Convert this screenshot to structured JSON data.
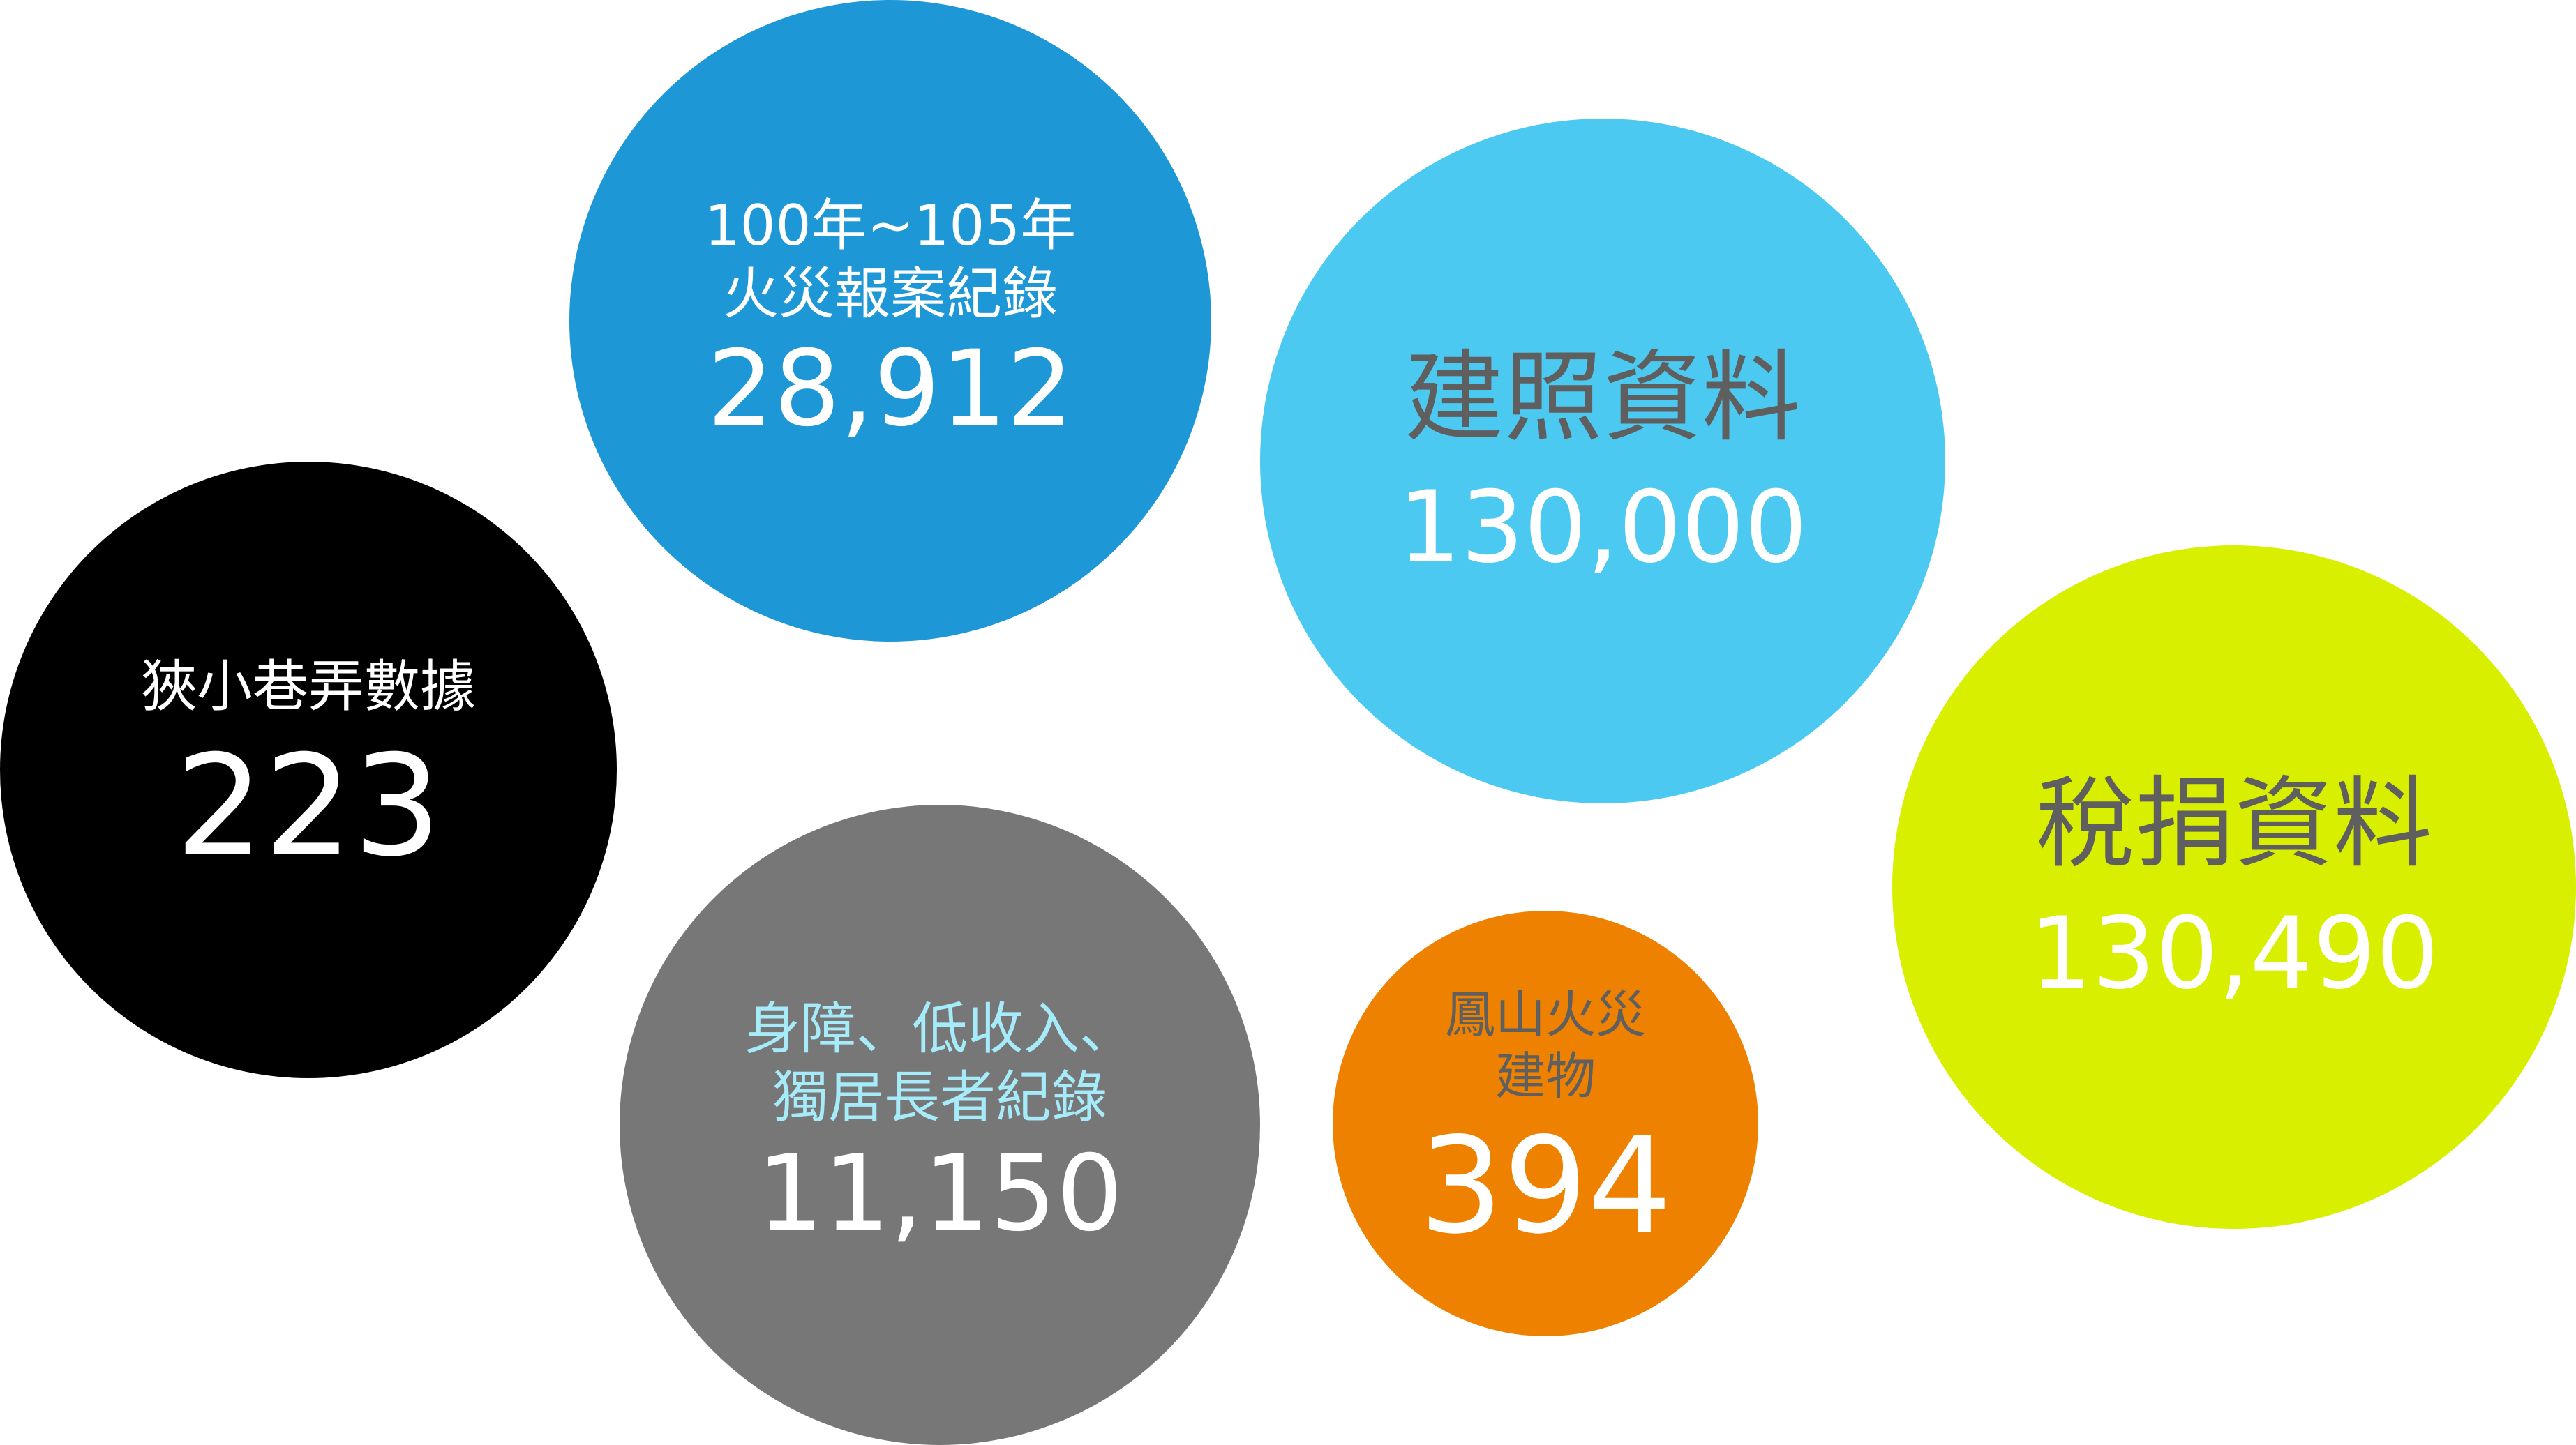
{
  "bubbles": [
    {
      "id": "fire-reports",
      "label_lines": [
        "100年~105年",
        "火災報案紀錄"
      ],
      "value": "28,912",
      "fill_color": "#1e97d6",
      "label_color": "#ffffff",
      "value_color": "#ffffff"
    },
    {
      "id": "building-permits",
      "label_lines": [
        "建照資料"
      ],
      "value": "130,000",
      "fill_color": "#4cc9f1",
      "label_color": "#5f5f5f",
      "value_color": "#ffffff"
    },
    {
      "id": "narrow-alleys",
      "label_lines": [
        "狹小巷弄數據"
      ],
      "value": "223",
      "fill_color": "#000000",
      "label_color": "#ffffff",
      "value_color": "#ffffff"
    },
    {
      "id": "tax-donation",
      "label_lines": [
        "稅捐資料"
      ],
      "value": "130,490",
      "fill_color": "#d8ef00",
      "label_color": "#5f5f5f",
      "value_color": "#ffffff"
    },
    {
      "id": "vulnerable",
      "label_lines": [
        "身障、低收入、",
        "獨居長者紀錄"
      ],
      "value": "11,150",
      "fill_color": "#777777",
      "label_color": "#a5ebfa",
      "value_color": "#ffffff"
    },
    {
      "id": "fengshan",
      "label_lines": [
        "鳳山火災",
        "建物"
      ],
      "value": "394",
      "fill_color": "#ee8200",
      "label_color": "#5f5f5f",
      "value_color": "#ffffff"
    }
  ]
}
